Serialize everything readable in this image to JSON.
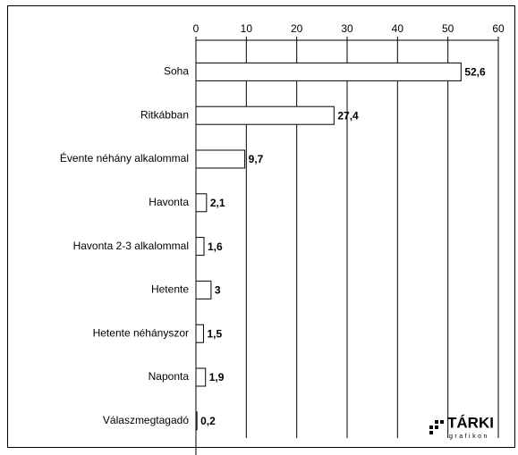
{
  "chart_data": {
    "type": "barh",
    "categories": [
      "Soha",
      "Ritkábban",
      "Évente néhány alkalommal",
      "Havonta",
      "Havonta 2-3 alkalommal",
      "Hetente",
      "Hetente néhányszor",
      "Naponta",
      "Válaszmegtagadó"
    ],
    "values": [
      52.6,
      27.4,
      9.7,
      2.1,
      1.6,
      3,
      1.5,
      1.9,
      0.2
    ],
    "value_labels": [
      "52,6",
      "27,4",
      "9,7",
      "2,1",
      "1,6",
      "3",
      "1,5",
      "1,9",
      "0,2"
    ],
    "color": "#ffffff",
    "xlim": [
      0,
      60
    ],
    "xticks": [
      0,
      10,
      20,
      30,
      40,
      50,
      60
    ],
    "grid": true
  },
  "logo": {
    "title": "TÁRKI",
    "subtitle": "grafikon"
  }
}
